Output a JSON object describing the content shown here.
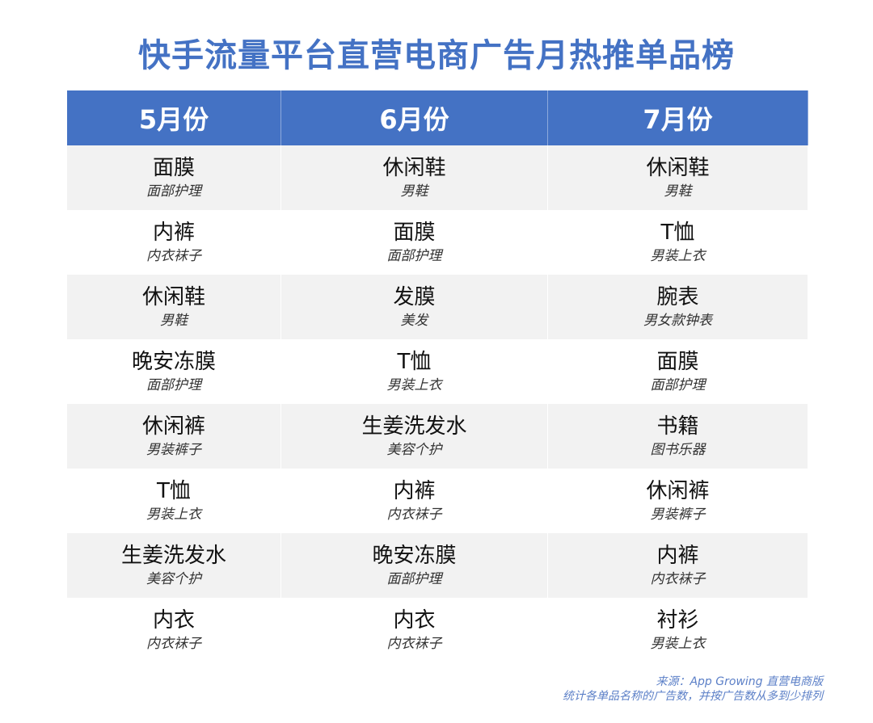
{
  "title": "快手流量平台直营电商广告月热推单品榜",
  "columns": [
    "5月份",
    "6月份",
    "7月份"
  ],
  "rows": [
    [
      {
        "name": "面膜",
        "category": "面部护理"
      },
      {
        "name": "休闲鞋",
        "category": "男鞋"
      },
      {
        "name": "休闲鞋",
        "category": "男鞋"
      }
    ],
    [
      {
        "name": "内裤",
        "category": "内衣袜子"
      },
      {
        "name": "面膜",
        "category": "面部护理"
      },
      {
        "name": "T恤",
        "category": "男装上衣"
      }
    ],
    [
      {
        "name": "休闲鞋",
        "category": "男鞋"
      },
      {
        "name": "发膜",
        "category": "美发"
      },
      {
        "name": "腕表",
        "category": "男女款钟表"
      }
    ],
    [
      {
        "name": "晚安冻膜",
        "category": "面部护理"
      },
      {
        "name": "T恤",
        "category": "男装上衣"
      },
      {
        "name": "面膜",
        "category": "面部护理"
      }
    ],
    [
      {
        "name": "休闲裤",
        "category": "男装裤子"
      },
      {
        "name": "生姜洗发水",
        "category": "美容个护"
      },
      {
        "name": "书籍",
        "category": "图书乐器"
      }
    ],
    [
      {
        "name": "T恤",
        "category": "男装上衣"
      },
      {
        "name": "内裤",
        "category": "内衣袜子"
      },
      {
        "name": "休闲裤",
        "category": "男装裤子"
      }
    ],
    [
      {
        "name": "生姜洗发水",
        "category": "美容个护"
      },
      {
        "name": "晚安冻膜",
        "category": "面部护理"
      },
      {
        "name": "内裤",
        "category": "内衣袜子"
      }
    ],
    [
      {
        "name": "内衣",
        "category": "内衣袜子"
      },
      {
        "name": "内衣",
        "category": "内衣袜子"
      },
      {
        "name": "衬衫",
        "category": "男装上衣"
      }
    ]
  ],
  "footer": {
    "source": "来源：App Growing 直营电商版",
    "note": "统计各单品名称的广告数，并按广告数从多到少排列"
  },
  "colors": {
    "header_bg": "#4472c4",
    "title": "#4472c4",
    "stripe": "#f2f2f2"
  }
}
